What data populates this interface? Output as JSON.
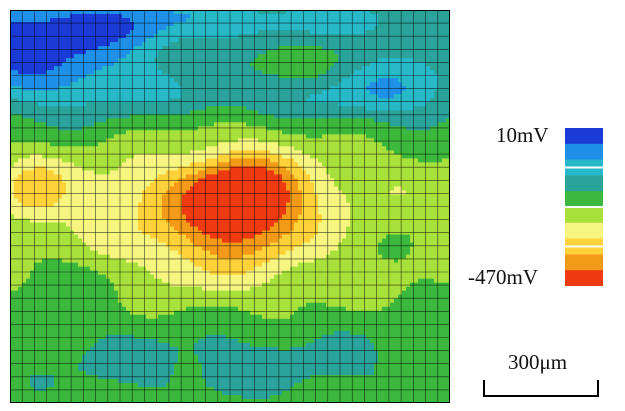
{
  "chart_data": {
    "type": "heatmap",
    "colorbar": {
      "max_label": "10mV",
      "min_label": "-470mV",
      "max_value": 10,
      "min_value": -470,
      "unit": "mV",
      "colors": [
        "#1a3bd6",
        "#1e90e8",
        "#27b9c8",
        "#2aa39a",
        "#3cb83c",
        "#a8e03c",
        "#f5f580",
        "#ffd23a",
        "#f39a18",
        "#ee3a10"
      ]
    },
    "scale_bar": {
      "label": "300μm",
      "length_um": 300
    },
    "grid_lines": true,
    "grid": {
      "rows": 30,
      "cols": 36
    },
    "features": [
      {
        "kind": "potential_minimum",
        "value_mv": -470,
        "location": "center-left"
      },
      {
        "kind": "potential_maximum",
        "value_mv": 10,
        "location": "top-left corner"
      }
    ]
  }
}
